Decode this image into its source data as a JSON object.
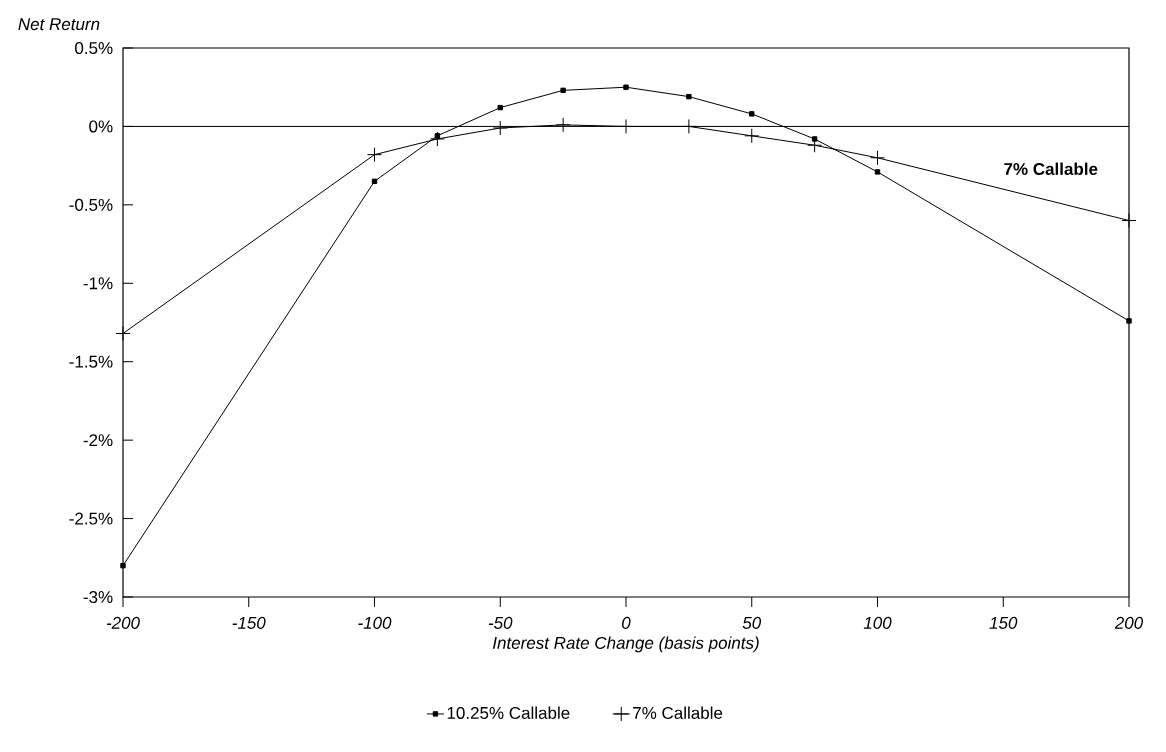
{
  "chart_data": {
    "type": "line",
    "xlabel": "Interest Rate Change (basis points)",
    "ylabel": "Net Return",
    "x": [
      -200,
      -100,
      -75,
      -50,
      -25,
      0,
      25,
      50,
      75,
      100,
      200
    ],
    "series": [
      {
        "name": "10.25% Callable",
        "color": "#000000",
        "marker": "square",
        "values": [
          -2.8,
          -0.35,
          -0.06,
          0.12,
          0.23,
          0.25,
          0.19,
          0.08,
          -0.08,
          -0.29,
          -1.24
        ]
      },
      {
        "name": "7% Callable",
        "color": "#000000",
        "marker": "cross",
        "values": [
          -1.32,
          -0.18,
          -0.08,
          -0.01,
          0.01,
          0.0,
          0.0,
          -0.06,
          -0.12,
          -0.2,
          -0.6
        ]
      }
    ],
    "xlim": [
      -200,
      200
    ],
    "xticks": [
      -200,
      -150,
      -100,
      -50,
      0,
      50,
      100,
      150,
      200
    ],
    "ylim": [
      -3,
      0.5
    ],
    "yticks": [
      {
        "value": 0.5,
        "label": "0.5%"
      },
      {
        "value": 0,
        "label": "0%"
      },
      {
        "value": -0.5,
        "label": "-0.5%"
      },
      {
        "value": -1,
        "label": "-1%"
      },
      {
        "value": -1.5,
        "label": "-1.5%"
      },
      {
        "value": -2,
        "label": "-2%"
      },
      {
        "value": -2.5,
        "label": "-2.5%"
      },
      {
        "value": -3,
        "label": "-3%"
      }
    ],
    "ref_lines": [
      {
        "axis": "y",
        "value": 0
      }
    ],
    "annotations": [
      "7% Callable"
    ],
    "grid": false,
    "legend": "bottom"
  }
}
